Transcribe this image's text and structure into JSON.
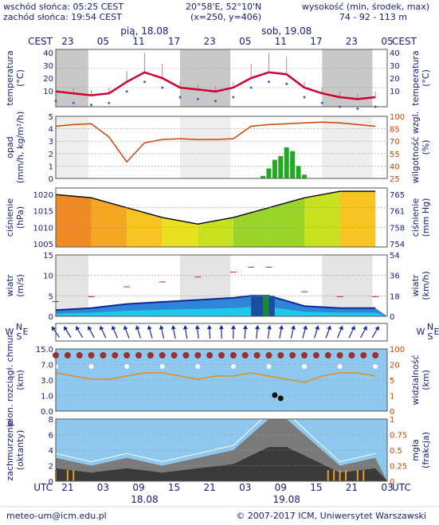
{
  "header": {
    "sunrise": "wschód słońca: 05:25 CEST",
    "sunset": "zachód słońca: 19:54 CEST",
    "coords": "20°58'E, 52°10'N",
    "grid": "(x=250, y=406)",
    "elev_label": "wysokość (min, środek, max)",
    "elev_values": "74 - 92 - 113 m"
  },
  "time_axis": {
    "tz_top": "CEST",
    "tz_bottom": "UTC",
    "day1_top": "pią, 18.08",
    "day2_top": "sob, 19.08",
    "hours_top": [
      "23",
      "05",
      "11",
      "17",
      "23",
      "05",
      "11",
      "17",
      "23",
      "05"
    ],
    "hours_bottom": [
      "21",
      "03",
      "09",
      "15",
      "21",
      "03",
      "09",
      "15",
      "21",
      "03"
    ],
    "day1_bottom": "18.08",
    "day2_bottom": "19.08"
  },
  "panels": {
    "temperature": {
      "label_left": "temperatura",
      "unit_left": "(°C)",
      "label_right": "temperatura",
      "unit_right": "(°C)",
      "ticks": [
        "40",
        "30",
        "20",
        "10"
      ]
    },
    "precip": {
      "label_left": "opad",
      "unit_left": "(mm/h, kg/m²/h)",
      "label_right": "wilgotność wzgl.",
      "unit_right": "(%)",
      "ticks_left": [
        "5",
        "4",
        "3",
        "2",
        "1",
        "0"
      ],
      "ticks_right": [
        "100",
        "85",
        "70",
        "55",
        "40",
        "25"
      ]
    },
    "pressure": {
      "label_left": "ciśnienie",
      "unit_left": "(hPa)",
      "label_right": "ciśnienie",
      "unit_right": "(mm Hg)",
      "ticks_left": [
        "1020",
        "1015",
        "1010",
        "1005"
      ],
      "ticks_right": [
        "765",
        "761",
        "758",
        "754"
      ]
    },
    "wind": {
      "label_left": "wiatr",
      "unit_left": "(m/s)",
      "label_right": "wiatr",
      "unit_right": "(km/h)",
      "ticks_left": [
        "15",
        "10",
        "5",
        "0"
      ],
      "ticks_right": [
        "54",
        "36",
        "18",
        "0"
      ]
    },
    "direction": {
      "w": "W",
      "s": "S",
      "n": "N",
      "e": "E"
    },
    "cloudbase": {
      "label_left": "pion. rozciągł. chmur",
      "unit_left": "(km)",
      "label_right": "widzialność",
      "unit_right": "(km)",
      "ticks_left": [
        "15.0",
        "7.0",
        "3.0",
        "1.0",
        "0.0"
      ],
      "ticks_right": [
        "100",
        "20",
        "5",
        "1",
        "0"
      ]
    },
    "cloudcover": {
      "label_left": "zachmurzenie",
      "unit_left": "(oktanty)",
      "label_right": "mgła",
      "unit_right": "(frakcja)",
      "ticks_left": [
        "8",
        "6",
        "4",
        "2",
        "0"
      ],
      "ticks_right": [
        "1",
        "0.75",
        "0.5",
        "0.25",
        "0"
      ]
    }
  },
  "footer": {
    "email": "meteo-um@icm.edu.pl",
    "copyright": "© 2007-2017 ICM, Uniwersytet Warszawski"
  },
  "colors": {
    "text": "#1a1a7a",
    "temp_line": "#cc0033",
    "humidity": "#cc4400",
    "precip": "#22aa22",
    "night": "#c8c8c8",
    "sky": "#8ec8ee"
  },
  "chart_data": [
    {
      "type": "line",
      "title": "temperatura",
      "ylabel": "(°C)",
      "ylim": [
        10,
        40
      ],
      "x_hours_cest": [
        0,
        3,
        6,
        9,
        12,
        15,
        18,
        21,
        24,
        27,
        30,
        33,
        36,
        39,
        42,
        45,
        48,
        51,
        54
      ],
      "series": [
        {
          "values": [
            18,
            17,
            16,
            17,
            23,
            28,
            25,
            20,
            19,
            18,
            20,
            25,
            28,
            27,
            20,
            17,
            15,
            14,
            15
          ]
        }
      ]
    },
    {
      "type": "bar",
      "title": "opad",
      "ylabel": "(mm/h, kg/m²/h)",
      "ylim": [
        0,
        5
      ],
      "x_hours_cest": [
        35,
        36,
        37,
        38,
        39,
        40,
        41,
        42
      ],
      "values": [
        0.2,
        0.8,
        1.5,
        1.8,
        2.5,
        2.2,
        1.0,
        0.3
      ]
    },
    {
      "type": "line",
      "title": "wilgotność wzgl.",
      "ylabel": "(%)",
      "ylim": [
        25,
        100
      ],
      "x_hours_cest": [
        0,
        3,
        6,
        9,
        12,
        15,
        18,
        21,
        24,
        27,
        30,
        33,
        36,
        39,
        42,
        45,
        48,
        51,
        54
      ],
      "series": [
        {
          "values": [
            88,
            90,
            91,
            75,
            45,
            68,
            72,
            73,
            72,
            72,
            73,
            88,
            90,
            91,
            92,
            93,
            92,
            90,
            88
          ]
        }
      ]
    },
    {
      "type": "area",
      "title": "ciśnienie",
      "ylabel": "(hPa)",
      "ylim": [
        1005,
        1022
      ],
      "x_hours_cest": [
        0,
        6,
        12,
        18,
        24,
        30,
        36,
        42,
        48,
        54
      ],
      "series": [
        {
          "values": [
            1020,
            1019,
            1016,
            1013,
            1011,
            1013,
            1016,
            1019,
            1021,
            1021
          ]
        }
      ]
    },
    {
      "type": "line",
      "title": "wiatr",
      "ylabel": "(m/s)",
      "ylim": [
        0,
        15
      ],
      "x_hours_cest": [
        0,
        6,
        12,
        18,
        24,
        30,
        33,
        36,
        42,
        48,
        54
      ],
      "series": [
        {
          "values": [
            1.5,
            2,
            3,
            3.5,
            4,
            4.5,
            5,
            5,
            2.5,
            2,
            2
          ]
        }
      ]
    },
    {
      "type": "area",
      "title": "zachmurzenie",
      "ylabel": "(oktanty)",
      "ylim": [
        0,
        8
      ],
      "x_hours_cest": [
        0,
        6,
        12,
        18,
        24,
        30,
        33,
        36,
        39,
        42,
        48,
        54
      ],
      "series": [
        {
          "values": [
            3,
            2,
            3,
            2,
            3,
            4,
            6,
            8,
            8,
            6,
            2,
            3
          ]
        }
      ]
    }
  ]
}
